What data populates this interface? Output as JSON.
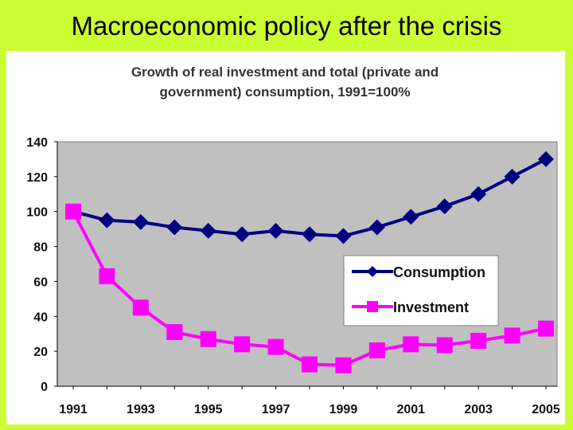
{
  "slide": {
    "title": "Macroeconomic policy after the crisis"
  },
  "colors": {
    "background": "#ccff33",
    "plot_area": "#c0c0c0",
    "consumption": "#000080",
    "investment": "#ff00ff"
  },
  "chart_data": {
    "type": "line",
    "title_lines": [
      "Growth of real investment and  total  (private and",
      "government) consumption, 1991=100%"
    ],
    "x": [
      1991,
      1992,
      1993,
      1994,
      1995,
      1996,
      1997,
      1998,
      1999,
      2000,
      2001,
      2002,
      2003,
      2004,
      2005
    ],
    "x_tick_labels": [
      "1991",
      "1993",
      "1995",
      "1997",
      "1999",
      "2001",
      "2003",
      "2005"
    ],
    "ylim": [
      0,
      140
    ],
    "y_ticks": [
      0,
      20,
      40,
      60,
      80,
      100,
      120,
      140
    ],
    "grid": false,
    "legend_position": "right",
    "series": [
      {
        "name": "Consumption",
        "marker": "diamond",
        "color": "#000080",
        "values": [
          100,
          95,
          94,
          91,
          89,
          87,
          89,
          87,
          86,
          91,
          97,
          103,
          110,
          120,
          130
        ]
      },
      {
        "name": "Investment",
        "marker": "square",
        "color": "#ff00ff",
        "values": [
          100,
          63,
          45,
          31,
          27,
          24,
          22.5,
          12.5,
          12,
          20.5,
          24,
          23.5,
          26,
          29,
          33
        ]
      }
    ]
  }
}
